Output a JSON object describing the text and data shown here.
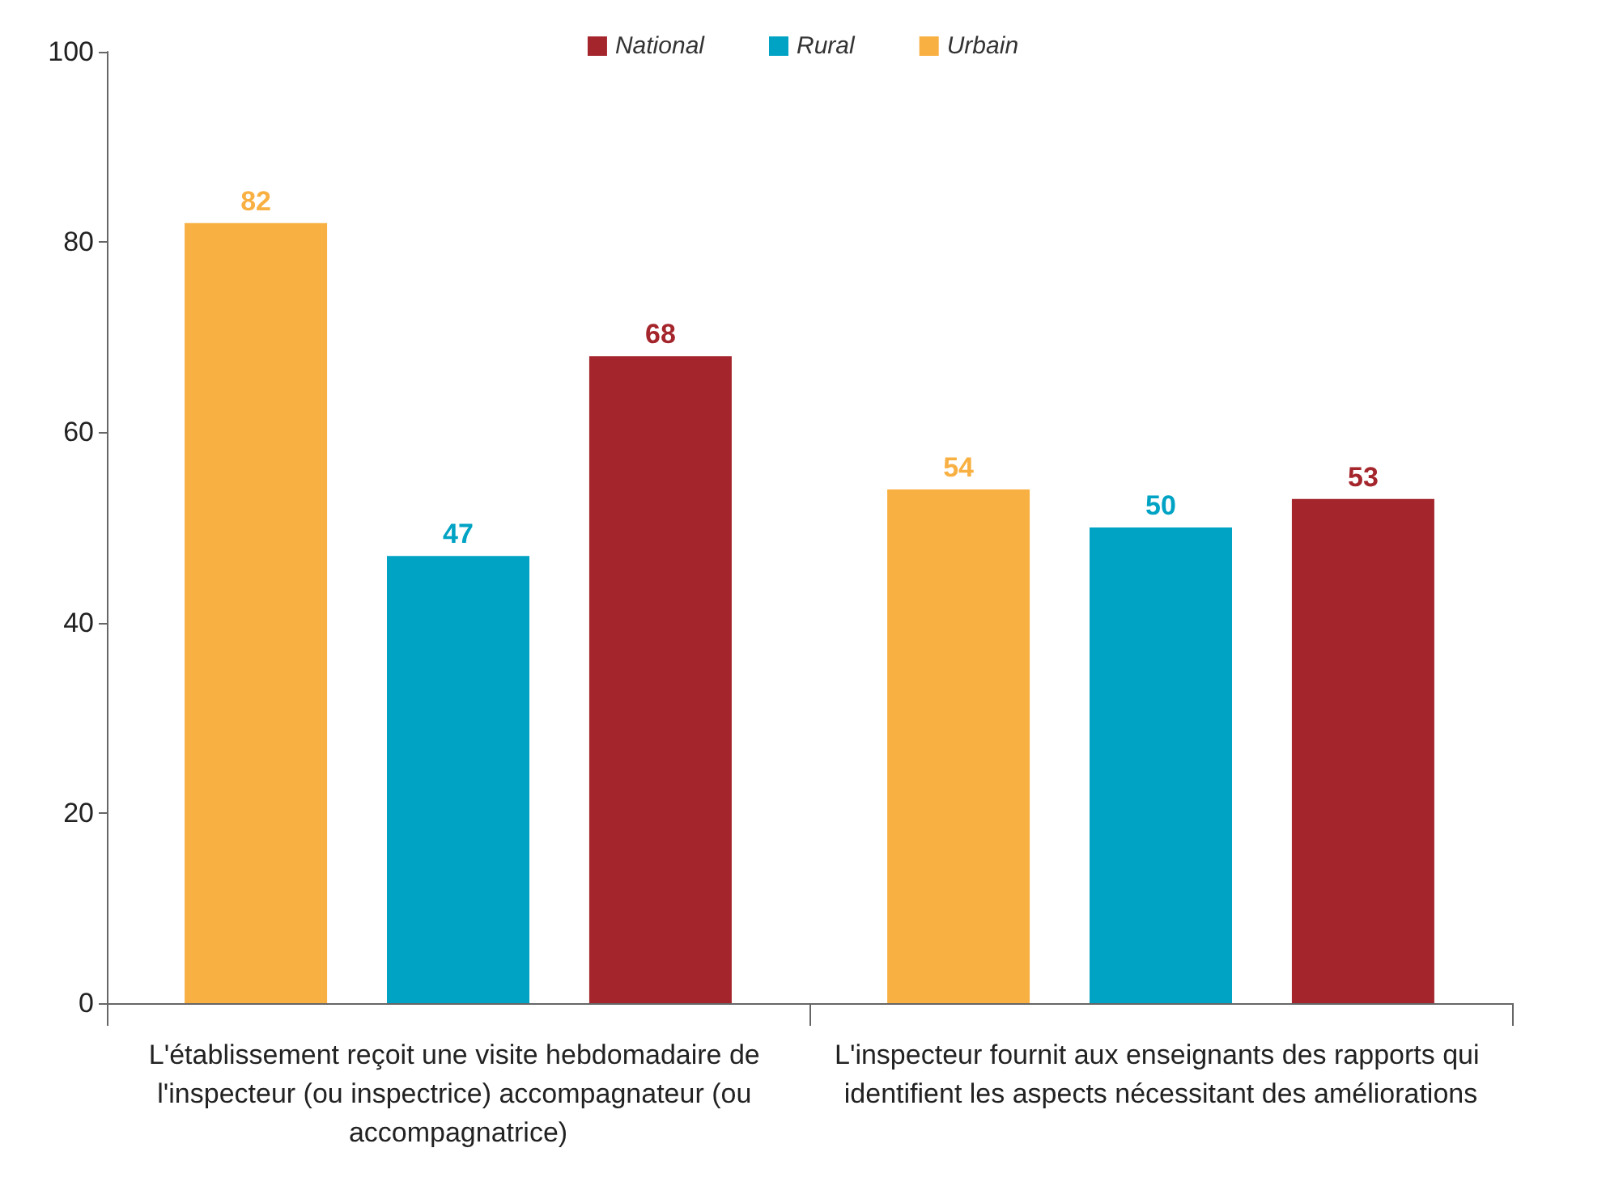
{
  "chart_data": {
    "type": "bar",
    "categories": [
      "L'établissement reçoit une visite hebdomadaire de l'inspecteur (ou inspectrice) accompagnateur (ou accompagnatrice)",
      "L'inspecteur fournit aux enseignants des rapports qui identifient les aspects nécessitant des améliorations"
    ],
    "series": [
      {
        "name": "Urbain",
        "color": "#f9b042",
        "values": [
          82,
          54
        ]
      },
      {
        "name": "Rural",
        "color": "#00a3c4",
        "values": [
          47,
          50
        ]
      },
      {
        "name": "National",
        "color": "#a4262c",
        "values": [
          68,
          53
        ]
      }
    ],
    "ylim": [
      0,
      100
    ],
    "yticks": [
      0,
      20,
      40,
      60,
      80,
      100
    ],
    "grid": false,
    "legend": "top",
    "data_labels": true
  }
}
